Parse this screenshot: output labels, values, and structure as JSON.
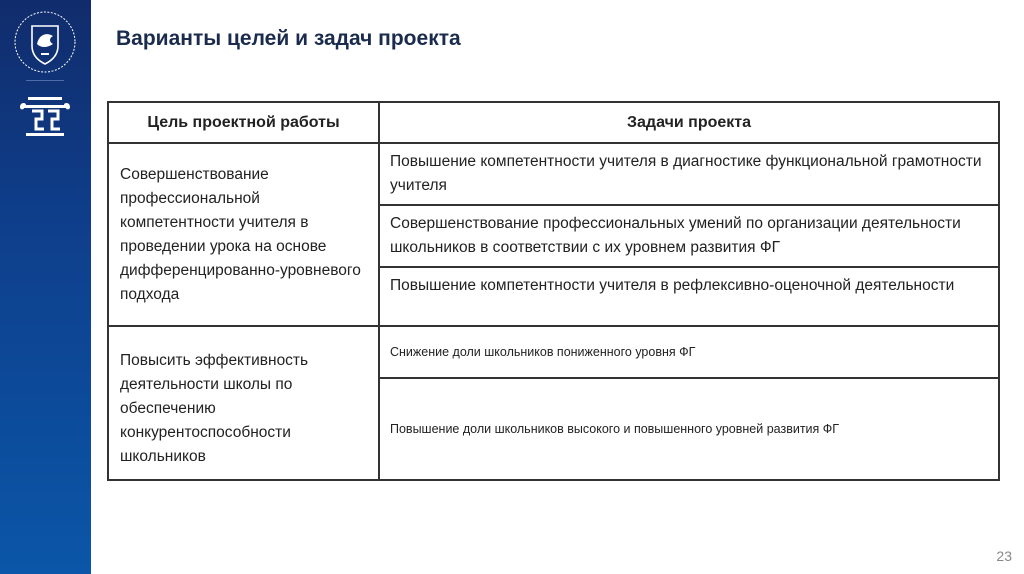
{
  "slide": {
    "title": "Варианты целей и задач проекта",
    "page_number": "23",
    "colors": {
      "sidebar_top": "#112c6c",
      "sidebar_bottom": "#0b56a8",
      "title": "#1a2b4d"
    }
  },
  "logos": {
    "university_emblem": "Казанский федеральный университет 1804",
    "institute_logo": "column-logo"
  },
  "table": {
    "headers": [
      "Цель проектной работы",
      "Задачи проекта"
    ],
    "groups": [
      {
        "goal": "Совершенствование профессиональной компетентности учителя в проведении урока на основе дифференцированно-уровневого подхода",
        "tasks": [
          "Повышение компетентности учителя в диагностике функциональной грамотности учителя",
          "Совершенствование профессиональных умений по организации деятельности школьников в соответствии с их уровнем развития ФГ",
          "Повышение компетентности учителя в рефлексивно-оценочной деятельности"
        ]
      },
      {
        "goal": "Повысить эффективность деятельности школы по обеспечению конкурентоспособности школьников",
        "tasks": [
          "Снижение доли школьников пониженного уровня ФГ",
          "Повышение доли школьников высокого и повышенного уровней развития ФГ"
        ]
      }
    ]
  }
}
